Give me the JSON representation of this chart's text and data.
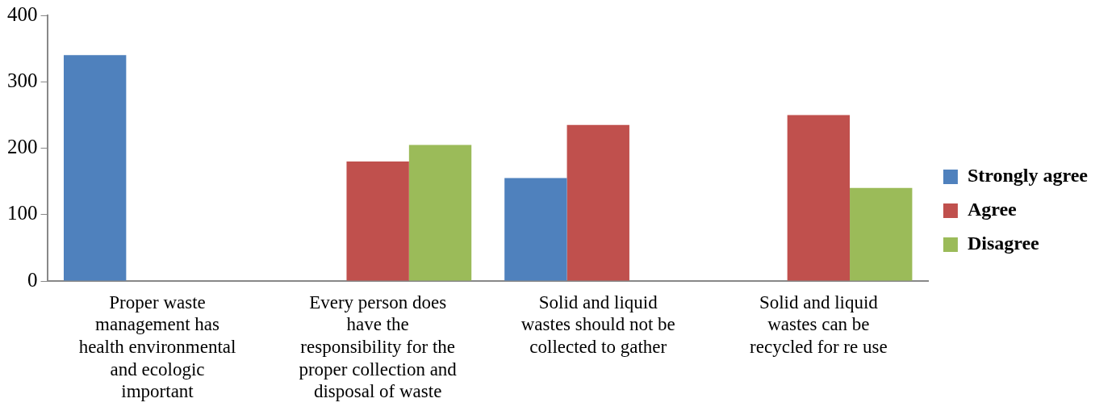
{
  "chart_data": {
    "type": "bar",
    "categories": [
      "Proper waste management has health environmental and ecologic important",
      "Every person does have the responsibility for the proper collection and disposal of waste",
      "Solid and liquid wastes should not be collected to gather",
      "Solid and liquid wastes can be recycled for re use"
    ],
    "series": [
      {
        "name": "Strongly agree",
        "color": "#4f81bd",
        "values": [
          340,
          0,
          155,
          0
        ]
      },
      {
        "name": "Agree",
        "color": "#c0504d",
        "values": [
          0,
          180,
          235,
          250
        ]
      },
      {
        "name": "Disagree",
        "color": "#9bbb59",
        "values": [
          0,
          205,
          0,
          140
        ]
      }
    ],
    "ylim": [
      0,
      400
    ],
    "yticks": [
      0,
      100,
      200,
      300,
      400
    ],
    "grid": false,
    "legend": "right"
  }
}
